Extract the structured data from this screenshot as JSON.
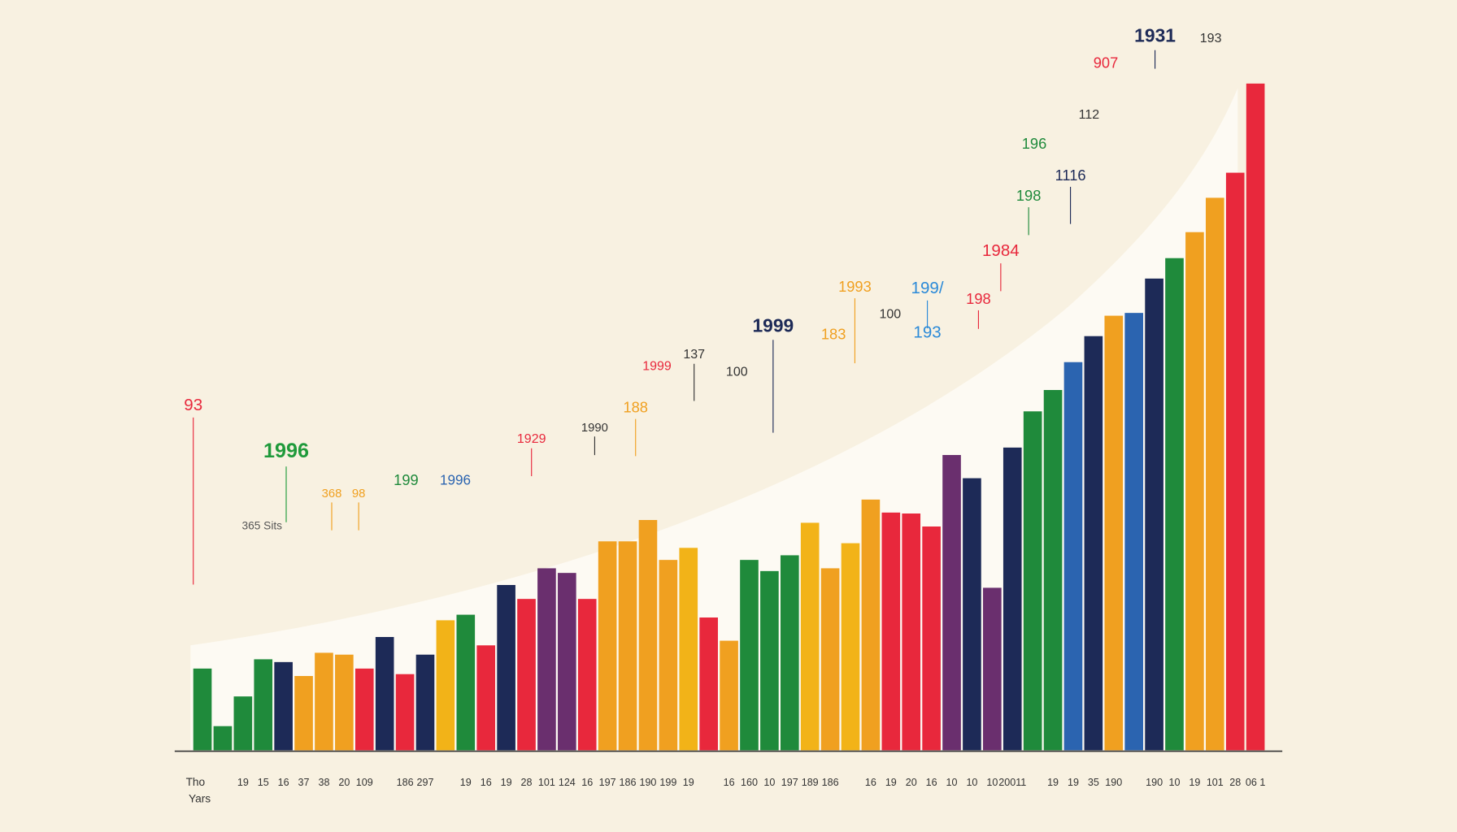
{
  "chart_data": {
    "type": "bar",
    "x_label_lines": [
      "Tho",
      "Yars"
    ],
    "categories": [
      null,
      null,
      "19",
      "15",
      "16",
      "37",
      "38",
      "20",
      "109",
      null,
      "186",
      "297",
      null,
      "19",
      "16",
      "19",
      "28",
      "101",
      "124",
      "16",
      "197",
      "186",
      "190",
      "199",
      "19",
      null,
      "16",
      "160",
      "10",
      "197",
      "189",
      "186",
      null,
      "16",
      "19",
      "20",
      "16",
      "10",
      "10",
      "10",
      "20011",
      null,
      "19",
      "19",
      "35",
      "190",
      null,
      "190",
      "10",
      "19",
      "101",
      "28",
      "06 1"
    ],
    "values": [
      88,
      26,
      58,
      98,
      95,
      80,
      105,
      103,
      88,
      122,
      82,
      103,
      140,
      146,
      113,
      178,
      163,
      196,
      191,
      163,
      225,
      225,
      248,
      205,
      218,
      143,
      118,
      205,
      193,
      210,
      245,
      196,
      223,
      270,
      256,
      255,
      241,
      318,
      293,
      175,
      326,
      365,
      388,
      418,
      446,
      468,
      471,
      508,
      530,
      558,
      595,
      622,
      718
    ],
    "colors": [
      "#1f8a3b",
      "#1f8a3b",
      "#1f8a3b",
      "#1f8a3b",
      "#1d2a57",
      "#f0a020",
      "#f0a020",
      "#f0a020",
      "#e8283c",
      "#1d2a57",
      "#e8283c",
      "#1d2a57",
      "#f2b318",
      "#1f8a3b",
      "#e8283c",
      "#1d2a57",
      "#e8283c",
      "#6a2f6e",
      "#6a2f6e",
      "#e8283c",
      "#f0a020",
      "#f0a020",
      "#f0a020",
      "#f0a020",
      "#f2b318",
      "#e8283c",
      "#f0a020",
      "#1f8a3b",
      "#1f8a3b",
      "#1f8a3b",
      "#f2b318",
      "#f0a020",
      "#f2b318",
      "#f0a020",
      "#e8283c",
      "#e8283c",
      "#e8283c",
      "#6a2f6e",
      "#1d2a57",
      "#6a2f6e",
      "#1d2a57",
      "#1f8a3b",
      "#1f8a3b",
      "#2b64b0",
      "#1d2a57",
      "#f0a020",
      "#2b64b0",
      "#1d2a57",
      "#1f8a3b",
      "#f0a020",
      "#f0a020",
      "#e8283c",
      "#e8283c"
    ],
    "ylim": [
      0,
      720
    ],
    "annotations": [
      {
        "text": "93",
        "color": "#e8283c"
      },
      {
        "text": "1996",
        "color": "#1f9a3b"
      },
      {
        "text": "365 Sits",
        "color": "#555555"
      },
      {
        "text": "368",
        "color": "#f0a020"
      },
      {
        "text": "98",
        "color": "#f0a020"
      },
      {
        "text": "199",
        "color": "#1f8a3b"
      },
      {
        "text": "1996",
        "color": "#2b64b0"
      },
      {
        "text": "1929",
        "color": "#e8283c"
      },
      {
        "text": "1990",
        "color": "#333333"
      },
      {
        "text": "188",
        "color": "#f0a020"
      },
      {
        "text": "1999",
        "color": "#e8283c"
      },
      {
        "text": "137",
        "color": "#333333"
      },
      {
        "text": "100",
        "color": "#333333"
      },
      {
        "text": "1999",
        "color": "#1d2a57"
      },
      {
        "text": "183",
        "color": "#f0a020"
      },
      {
        "text": "1993",
        "color": "#f0a020"
      },
      {
        "text": "100",
        "color": "#333333"
      },
      {
        "text": "199/",
        "color": "#2b8ad8"
      },
      {
        "text": "193",
        "color": "#2b8ad8"
      },
      {
        "text": "198",
        "color": "#e8283c"
      },
      {
        "text": "1984",
        "color": "#e8283c"
      },
      {
        "text": "198",
        "color": "#1f8a3b"
      },
      {
        "text": "1116",
        "color": "#1d2a57"
      },
      {
        "text": "196",
        "color": "#1f8a3b"
      },
      {
        "text": "112",
        "color": "#333333"
      },
      {
        "text": "907",
        "color": "#e8283c"
      },
      {
        "text": "1931",
        "color": "#1d2a57"
      },
      {
        "text": "193",
        "color": "#333333"
      }
    ]
  }
}
